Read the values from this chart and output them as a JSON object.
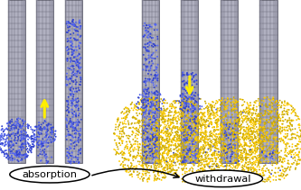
{
  "fig_width": 3.33,
  "fig_height": 2.11,
  "dpi": 100,
  "background": "#ffffff",
  "atom_blue": "#3344cc",
  "atom_blue_light": "#5566ee",
  "atom_yellow": "#ccaa00",
  "atom_yellow_light": "#ffcc00",
  "tube_face": "#b0b0c0",
  "tube_edge": "#555566",
  "tube_grid": "#444455",
  "tube_shade": "#888899"
}
